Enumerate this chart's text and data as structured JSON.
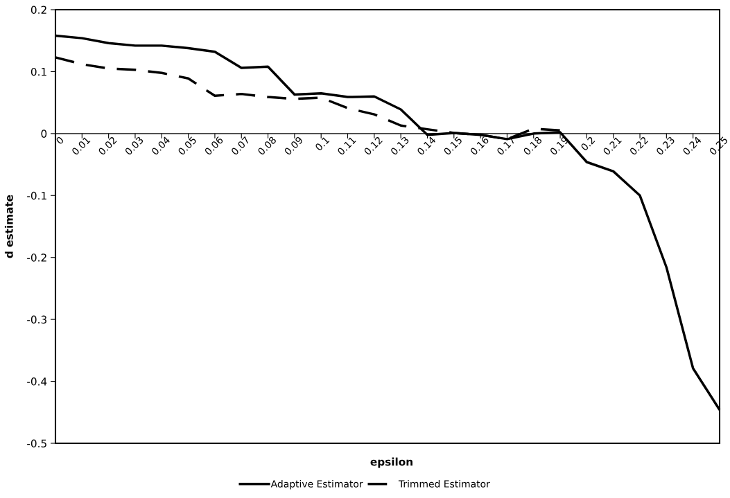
{
  "chart_data": {
    "type": "line",
    "xlabel": "epsilon",
    "ylabel": "d estimate",
    "categories": [
      "0",
      "0.01",
      "0.02",
      "0.03",
      "0.04",
      "0.05",
      "0.06",
      "0.07",
      "0.08",
      "0.09",
      "0.1",
      "0.11",
      "0.12",
      "0.13",
      "0.14",
      "0.15",
      "0.16",
      "0.17",
      "0.18",
      "0.19",
      "0.2",
      "0.21",
      "0.22",
      "0.23",
      "0.24",
      "0.25"
    ],
    "series": [
      {
        "name": "Adaptive Estimator",
        "color": "#000000",
        "line_style": "solid",
        "values": [
          0.158,
          0.154,
          0.146,
          0.142,
          0.142,
          0.138,
          0.132,
          0.106,
          0.108,
          0.063,
          0.065,
          0.059,
          0.06,
          0.039,
          -0.002,
          0.001,
          -0.002,
          -0.009,
          0.0,
          0.002,
          -0.046,
          -0.061,
          -0.1,
          -0.216,
          -0.379,
          -0.446
        ]
      },
      {
        "name": "Trimmed Estimator",
        "color": "#000000",
        "line_style": "dashed",
        "values": [
          0.123,
          0.112,
          0.105,
          0.103,
          0.098,
          0.089,
          0.061,
          0.064,
          0.059,
          0.056,
          0.058,
          0.041,
          0.031,
          0.013,
          0.007,
          0.001,
          -0.002,
          -0.009,
          0.008,
          0.005,
          null,
          null,
          null,
          null,
          null,
          null
        ]
      }
    ],
    "ylim": [
      -0.5,
      0.2
    ],
    "yticks": [
      -0.5,
      -0.4,
      -0.3,
      -0.2,
      -0.1,
      0,
      0.1,
      0.2
    ],
    "grid": false,
    "legend": "bottom",
    "marker": "none"
  }
}
